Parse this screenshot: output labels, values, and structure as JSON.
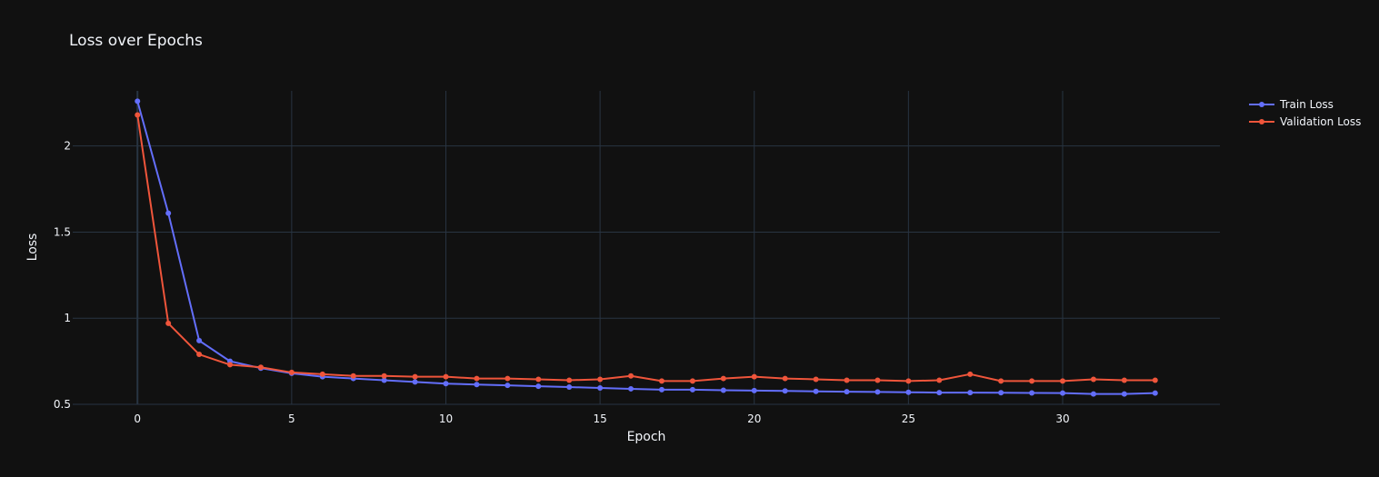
{
  "chart_data": {
    "type": "line",
    "title": "Loss over Epochs",
    "xlabel": "Epoch",
    "ylabel": "Loss",
    "xlim": [
      -2.1,
      35.1
    ],
    "ylim": [
      0.5,
      2.32
    ],
    "x_ticks": [
      0,
      5,
      10,
      15,
      20,
      25,
      30
    ],
    "y_ticks": [
      0.5,
      1,
      1.5,
      2
    ],
    "grid": true,
    "legend_position": "top-right",
    "x": [
      0,
      1,
      2,
      3,
      4,
      5,
      6,
      7,
      8,
      9,
      10,
      11,
      12,
      13,
      14,
      15,
      16,
      17,
      18,
      19,
      20,
      21,
      22,
      23,
      24,
      25,
      26,
      27,
      28,
      29,
      30,
      31,
      32,
      33
    ],
    "series": [
      {
        "name": "Train Loss",
        "color": "#636efa",
        "values": [
          2.26,
          1.61,
          0.87,
          0.75,
          0.71,
          0.68,
          0.66,
          0.65,
          0.64,
          0.63,
          0.62,
          0.615,
          0.61,
          0.605,
          0.6,
          0.595,
          0.59,
          0.585,
          0.585,
          0.582,
          0.58,
          0.578,
          0.575,
          0.573,
          0.572,
          0.57,
          0.568,
          0.568,
          0.567,
          0.566,
          0.565,
          0.56,
          0.56,
          0.565
        ]
      },
      {
        "name": "Validation Loss",
        "color": "#ef553b",
        "values": [
          2.18,
          0.97,
          0.79,
          0.73,
          0.715,
          0.685,
          0.675,
          0.665,
          0.665,
          0.66,
          0.66,
          0.65,
          0.65,
          0.645,
          0.64,
          0.645,
          0.665,
          0.635,
          0.635,
          0.65,
          0.66,
          0.65,
          0.645,
          0.64,
          0.64,
          0.635,
          0.64,
          0.675,
          0.635,
          0.635,
          0.635,
          0.645,
          0.64,
          0.64
        ]
      }
    ]
  }
}
